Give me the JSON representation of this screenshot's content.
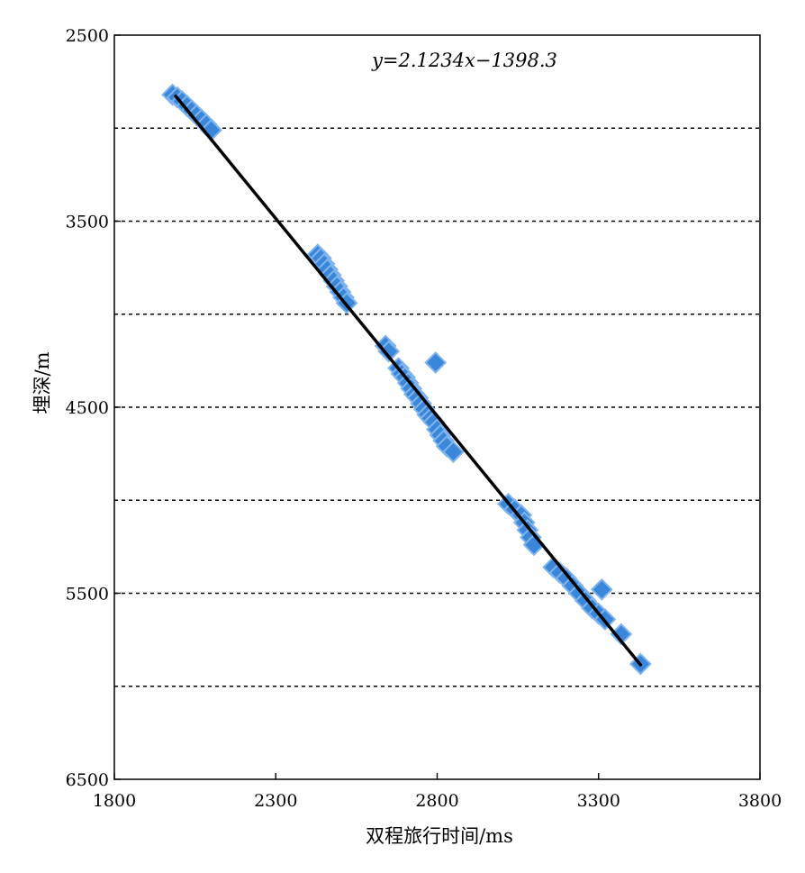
{
  "chart_data": {
    "type": "scatter",
    "title": "",
    "xlabel": "双程旅行时间/ms",
    "ylabel": "埋深/m",
    "xlim": [
      1800,
      3800
    ],
    "ylim": [
      2500,
      6500
    ],
    "y_inverted": true,
    "x_ticks": [
      1800,
      2300,
      2800,
      3300,
      3800
    ],
    "y_ticks": [
      2500,
      3500,
      4500,
      5500,
      6500
    ],
    "y_gridlines": [
      3000,
      3500,
      4000,
      4500,
      5000,
      5500,
      6000
    ],
    "grid": "horizontal-dotted",
    "marker_color": "#3a86d9",
    "line_color": "#000000",
    "equation": "y=2.1234x−1398.3",
    "fit_line": {
      "slope": 2.1234,
      "intercept": -1398.3,
      "x_range": [
        1990,
        3430
      ]
    },
    "series": [
      {
        "points": [
          [
            1980,
            2820
          ],
          [
            1995,
            2835
          ],
          [
            2010,
            2855
          ],
          [
            2025,
            2880
          ],
          [
            2040,
            2905
          ],
          [
            2055,
            2930
          ],
          [
            2070,
            2955
          ],
          [
            2085,
            2980
          ],
          [
            2100,
            3010
          ],
          [
            2430,
            3680
          ],
          [
            2440,
            3700
          ],
          [
            2450,
            3730
          ],
          [
            2460,
            3760
          ],
          [
            2470,
            3790
          ],
          [
            2480,
            3820
          ],
          [
            2490,
            3850
          ],
          [
            2500,
            3880
          ],
          [
            2510,
            3910
          ],
          [
            2520,
            3940
          ],
          [
            2640,
            4170
          ],
          [
            2650,
            4200
          ],
          [
            2680,
            4290
          ],
          [
            2690,
            4320
          ],
          [
            2700,
            4340
          ],
          [
            2710,
            4370
          ],
          [
            2720,
            4400
          ],
          [
            2730,
            4430
          ],
          [
            2740,
            4450
          ],
          [
            2750,
            4480
          ],
          [
            2760,
            4510
          ],
          [
            2770,
            4540
          ],
          [
            2780,
            4560
          ],
          [
            2790,
            4580
          ],
          [
            2800,
            4620
          ],
          [
            2810,
            4650
          ],
          [
            2820,
            4680
          ],
          [
            2830,
            4710
          ],
          [
            2850,
            4740
          ],
          [
            2795,
            4260
          ],
          [
            3020,
            5020
          ],
          [
            3040,
            5050
          ],
          [
            3060,
            5080
          ],
          [
            3070,
            5120
          ],
          [
            3080,
            5160
          ],
          [
            3090,
            5200
          ],
          [
            3100,
            5240
          ],
          [
            3160,
            5360
          ],
          [
            3180,
            5390
          ],
          [
            3200,
            5420
          ],
          [
            3220,
            5460
          ],
          [
            3240,
            5500
          ],
          [
            3260,
            5540
          ],
          [
            3280,
            5580
          ],
          [
            3300,
            5610
          ],
          [
            3320,
            5640
          ],
          [
            3310,
            5480
          ],
          [
            3370,
            5720
          ],
          [
            3430,
            5880
          ]
        ]
      }
    ]
  }
}
